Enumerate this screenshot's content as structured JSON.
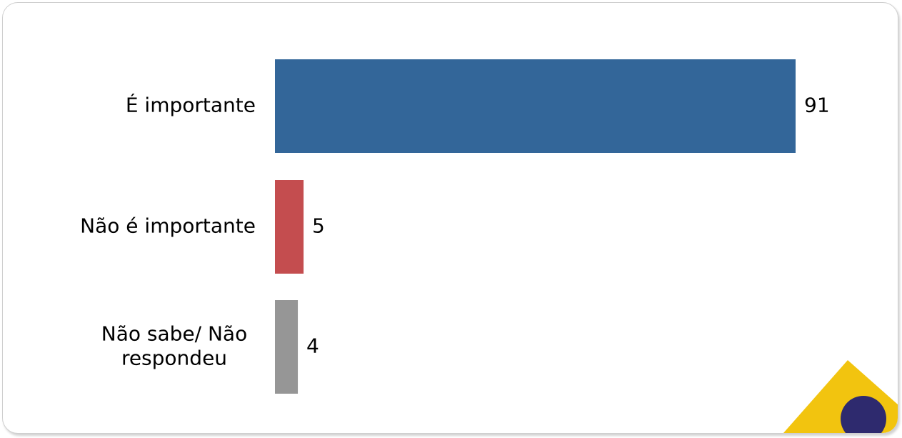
{
  "chart_data": {
    "type": "bar",
    "orientation": "horizontal",
    "categories": [
      "É importante",
      "Não é importante",
      "Não sabe/ Não respondeu"
    ],
    "category_lines": [
      [
        "É importante"
      ],
      [
        "Não é importante"
      ],
      [
        "Não sabe/ Não",
        "respondeu"
      ]
    ],
    "values": [
      91,
      5,
      4
    ],
    "value_labels": [
      "91",
      "5",
      "4"
    ],
    "colors": [
      "#336699",
      "#C44D4F",
      "#969696"
    ],
    "title": "",
    "xlabel": "",
    "ylabel": "",
    "xlim": [
      0,
      91
    ],
    "grid": false,
    "legend": "none"
  },
  "decorations": {
    "corner_logo_colors": [
      "#F2C40F",
      "#2E2A6E"
    ]
  }
}
